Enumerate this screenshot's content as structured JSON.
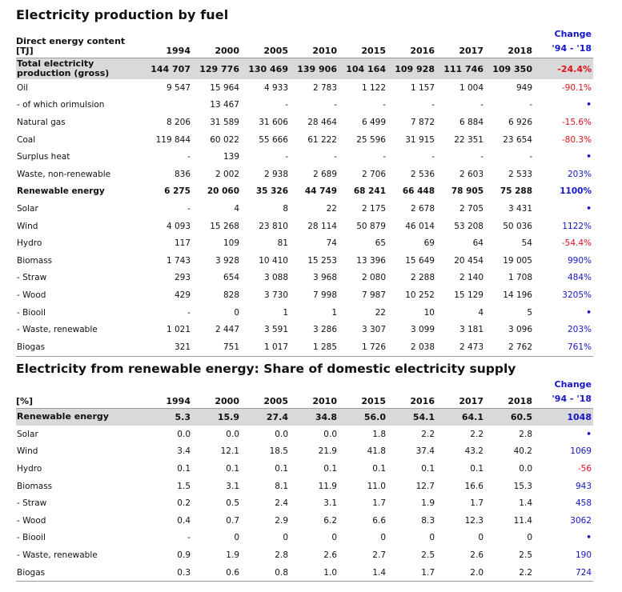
{
  "title1": "Electricity production by fuel",
  "table1": {
    "label_header": "Direct energy content [TJ]",
    "years": [
      "1994",
      "2000",
      "2005",
      "2010",
      "2015",
      "2016",
      "2017",
      "2018"
    ],
    "change_header_1": "Change",
    "change_header_2": "'94 - '18",
    "rows": [
      {
        "label": "Total electricity production (gross)",
        "style": "total",
        "values": [
          "144 707",
          "129 776",
          "130 469",
          "139 906",
          "104 164",
          "109 928",
          "111 746",
          "109 350"
        ],
        "change": "-24.4%",
        "change_color": "neg"
      },
      {
        "label": "Oil",
        "style": "",
        "values": [
          "9 547",
          "15 964",
          "4 933",
          "2 783",
          "1 122",
          "1 157",
          "1 004",
          "949"
        ],
        "change": "-90.1%",
        "change_color": "neg"
      },
      {
        "label": "- of which orimulsion",
        "style": "",
        "values": [
          "",
          "13 467",
          "-",
          "-",
          "-",
          "-",
          "-",
          "-"
        ],
        "change": "•",
        "change_color": "dot"
      },
      {
        "label": "Natural gas",
        "style": "",
        "values": [
          "8 206",
          "31 589",
          "31 606",
          "28 464",
          "6 499",
          "7 872",
          "6 884",
          "6 926"
        ],
        "change": "-15.6%",
        "change_color": "neg"
      },
      {
        "label": "Coal",
        "style": "",
        "values": [
          "119 844",
          "60 022",
          "55 666",
          "61 222",
          "25 596",
          "31 915",
          "22 351",
          "23 654"
        ],
        "change": "-80.3%",
        "change_color": "neg"
      },
      {
        "label": "Surplus heat",
        "style": "",
        "values": [
          "-",
          "139",
          "-",
          "-",
          "-",
          "-",
          "-",
          "-"
        ],
        "change": "•",
        "change_color": "dot"
      },
      {
        "label": "Waste, non-renewable",
        "style": "",
        "values": [
          "836",
          "2 002",
          "2 938",
          "2 689",
          "2 706",
          "2 536",
          "2 603",
          "2 533"
        ],
        "change": "203%",
        "change_color": "pos"
      },
      {
        "label": "Renewable energy",
        "style": "bold",
        "values": [
          "6 275",
          "20 060",
          "35 326",
          "44 749",
          "68 241",
          "66 448",
          "78 905",
          "75 288"
        ],
        "change": "1100%",
        "change_color": "pos"
      },
      {
        "label": "Solar",
        "style": "",
        "values": [
          "-",
          "4",
          "8",
          "22",
          "2 175",
          "2 678",
          "2 705",
          "3 431"
        ],
        "change": "•",
        "change_color": "dot"
      },
      {
        "label": "Wind",
        "style": "",
        "values": [
          "4 093",
          "15 268",
          "23 810",
          "28 114",
          "50 879",
          "46 014",
          "53 208",
          "50 036"
        ],
        "change": "1122%",
        "change_color": "pos"
      },
      {
        "label": "Hydro",
        "style": "",
        "values": [
          "117",
          "109",
          "81",
          "74",
          "65",
          "69",
          "64",
          "54"
        ],
        "change": "-54.4%",
        "change_color": "neg"
      },
      {
        "label": "Biomass",
        "style": "",
        "values": [
          "1 743",
          "3 928",
          "10 410",
          "15 253",
          "13 396",
          "15 649",
          "20 454",
          "19 005"
        ],
        "change": "990%",
        "change_color": "pos"
      },
      {
        "label": "- Straw",
        "style": "",
        "values": [
          "293",
          "654",
          "3 088",
          "3 968",
          "2 080",
          "2 288",
          "2 140",
          "1 708"
        ],
        "change": "484%",
        "change_color": "pos"
      },
      {
        "label": "- Wood",
        "style": "",
        "values": [
          "429",
          "828",
          "3 730",
          "7 998",
          "7 987",
          "10 252",
          "15 129",
          "14 196"
        ],
        "change": "3205%",
        "change_color": "pos"
      },
      {
        "label": "- Biooil",
        "style": "",
        "values": [
          "-",
          "0",
          "1",
          "1",
          "22",
          "10",
          "4",
          "5"
        ],
        "change": "•",
        "change_color": "dot"
      },
      {
        "label": "- Waste, renewable",
        "style": "",
        "values": [
          "1 021",
          "2 447",
          "3 591",
          "3 286",
          "3 307",
          "3 099",
          "3 181",
          "3 096"
        ],
        "change": "203%",
        "change_color": "pos"
      },
      {
        "label": "Biogas",
        "style": "",
        "values": [
          "321",
          "751",
          "1 017",
          "1 285",
          "1 726",
          "2 038",
          "2 473",
          "2 762"
        ],
        "change": "761%",
        "change_color": "pos"
      }
    ]
  },
  "title2": "Electricity from renewable energy: Share of domestic electricity supply",
  "table2": {
    "label_header": "[%]",
    "years": [
      "1994",
      "2000",
      "2005",
      "2010",
      "2015",
      "2016",
      "2017",
      "2018"
    ],
    "change_header_1": "Change",
    "change_header_2": "'94 - '18",
    "rows": [
      {
        "label": "Renewable energy",
        "style": "total",
        "values": [
          "5.3",
          "15.9",
          "27.4",
          "34.8",
          "56.0",
          "54.1",
          "64.1",
          "60.5"
        ],
        "change": "1048",
        "change_color": "pos"
      },
      {
        "label": "Solar",
        "style": "",
        "values": [
          "0.0",
          "0.0",
          "0.0",
          "0.0",
          "1.8",
          "2.2",
          "2.2",
          "2.8"
        ],
        "change": "•",
        "change_color": "dot"
      },
      {
        "label": "Wind",
        "style": "",
        "values": [
          "3.4",
          "12.1",
          "18.5",
          "21.9",
          "41.8",
          "37.4",
          "43.2",
          "40.2"
        ],
        "change": "1069",
        "change_color": "pos"
      },
      {
        "label": "Hydro",
        "style": "",
        "values": [
          "0.1",
          "0.1",
          "0.1",
          "0.1",
          "0.1",
          "0.1",
          "0.1",
          "0.0"
        ],
        "change": "-56",
        "change_color": "neg"
      },
      {
        "label": "Biomass",
        "style": "",
        "values": [
          "1.5",
          "3.1",
          "8.1",
          "11.9",
          "11.0",
          "12.7",
          "16.6",
          "15.3"
        ],
        "change": "943",
        "change_color": "pos"
      },
      {
        "label": "- Straw",
        "style": "",
        "values": [
          "0.2",
          "0.5",
          "2.4",
          "3.1",
          "1.7",
          "1.9",
          "1.7",
          "1.4"
        ],
        "change": "458",
        "change_color": "pos"
      },
      {
        "label": "- Wood",
        "style": "",
        "values": [
          "0.4",
          "0.7",
          "2.9",
          "6.2",
          "6.6",
          "8.3",
          "12.3",
          "11.4"
        ],
        "change": "3062",
        "change_color": "pos"
      },
      {
        "label": "- Biooil",
        "style": "",
        "values": [
          "-",
          "0",
          "0",
          "0",
          "0",
          "0",
          "0",
          "0"
        ],
        "change": "•",
        "change_color": "dot"
      },
      {
        "label": "- Waste, renewable",
        "style": "",
        "values": [
          "0.9",
          "1.9",
          "2.8",
          "2.6",
          "2.7",
          "2.5",
          "2.6",
          "2.5"
        ],
        "change": "190",
        "change_color": "pos"
      },
      {
        "label": "Biogas",
        "style": "",
        "values": [
          "0.3",
          "0.6",
          "0.8",
          "1.0",
          "1.4",
          "1.7",
          "2.0",
          "2.2"
        ],
        "change": "724",
        "change_color": "pos"
      }
    ]
  }
}
